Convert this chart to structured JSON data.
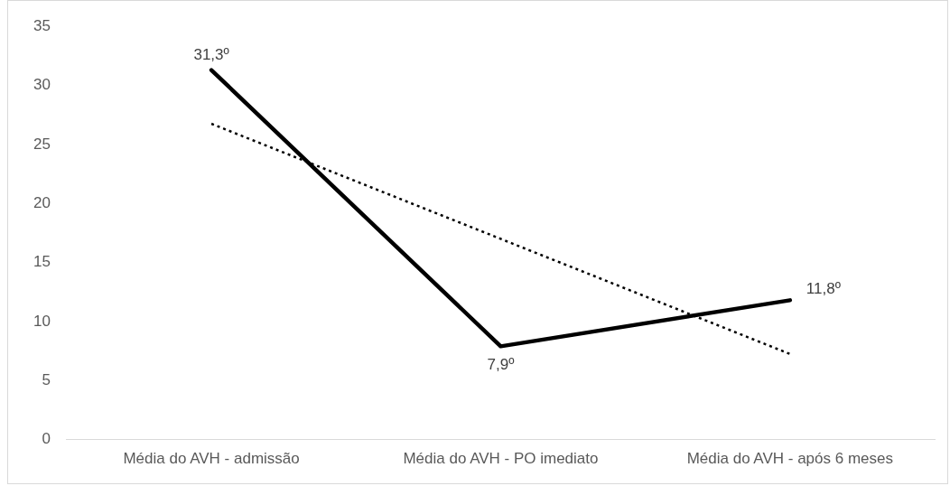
{
  "chart_data": {
    "type": "line",
    "categories": [
      "Média do AVH - admissão",
      "Média do AVH - PO imediato",
      "Média do AVH - após 6 meses"
    ],
    "series": [
      {
        "color": "#000000",
        "values": [
          31.3,
          7.9,
          11.8
        ],
        "value_labels": [
          "31,3º",
          "7,9º",
          "11,8º"
        ],
        "line_style": "solid"
      },
      {
        "type": "line",
        "color": "#000000",
        "values": [
          26.75,
          17,
          7.25
        ],
        "line_style": "dotted"
      }
    ],
    "ylim": [
      0,
      35
    ],
    "yticks": [
      0,
      5,
      10,
      15,
      20,
      25,
      30,
      35
    ],
    "grid": false,
    "legend": false,
    "marker": "none"
  }
}
